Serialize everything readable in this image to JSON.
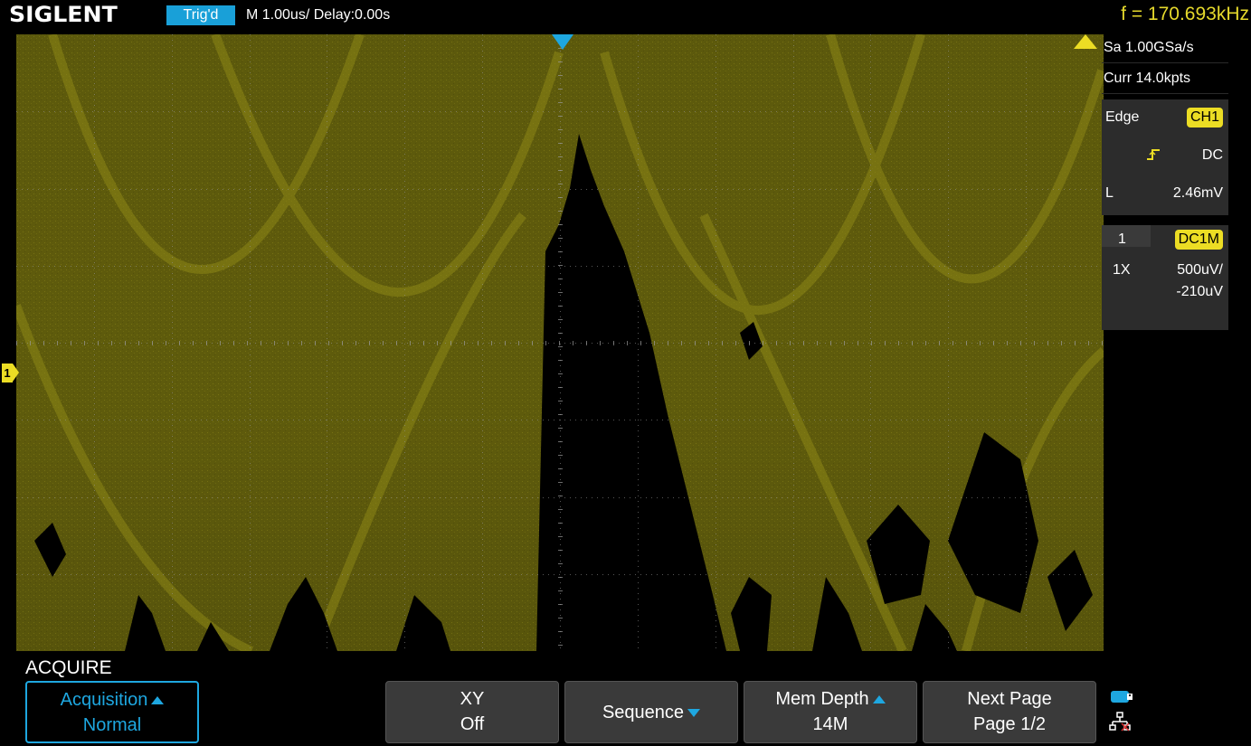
{
  "topbar": {
    "brand": "SIGLENT",
    "trigger_status": "Trig'd",
    "timebase": "M 1.00us/  Delay:0.00s",
    "frequency": "f = 170.693kHz"
  },
  "acquisition_info": {
    "sample_rate": "Sa 1.00GSa/s",
    "memory": "Curr 14.0kpts"
  },
  "trigger": {
    "type": "Edge",
    "source": "CH1",
    "slope_icon": "rising-edge-icon",
    "coupling": "DC",
    "level_label": "L",
    "level": "2.46mV"
  },
  "channel": {
    "number": "1",
    "coupling": "DC1M",
    "probe": "1X",
    "scale": "500uV/",
    "offset": "-210uV",
    "marker": "1"
  },
  "menu": {
    "title": "ACQUIRE",
    "softkeys": [
      {
        "line1": "Acquisition",
        "line2": "Normal",
        "arrow": "up",
        "active": true
      },
      {
        "line1": "XY",
        "line2": "Off"
      },
      {
        "line1": "Sequence",
        "arrow": "down"
      },
      {
        "line1": "Mem Depth",
        "line2": "14M",
        "arrow": "up"
      },
      {
        "line1": "Next Page",
        "line2": "Page 1/2"
      }
    ]
  },
  "status_icons": [
    "usb-storage-icon",
    "network-disconnected-icon"
  ],
  "colors": {
    "trace": "#ecdd24",
    "accent": "#1ea7e0",
    "panel": "#2c2c2c",
    "softkey": "#3a3a3a"
  }
}
